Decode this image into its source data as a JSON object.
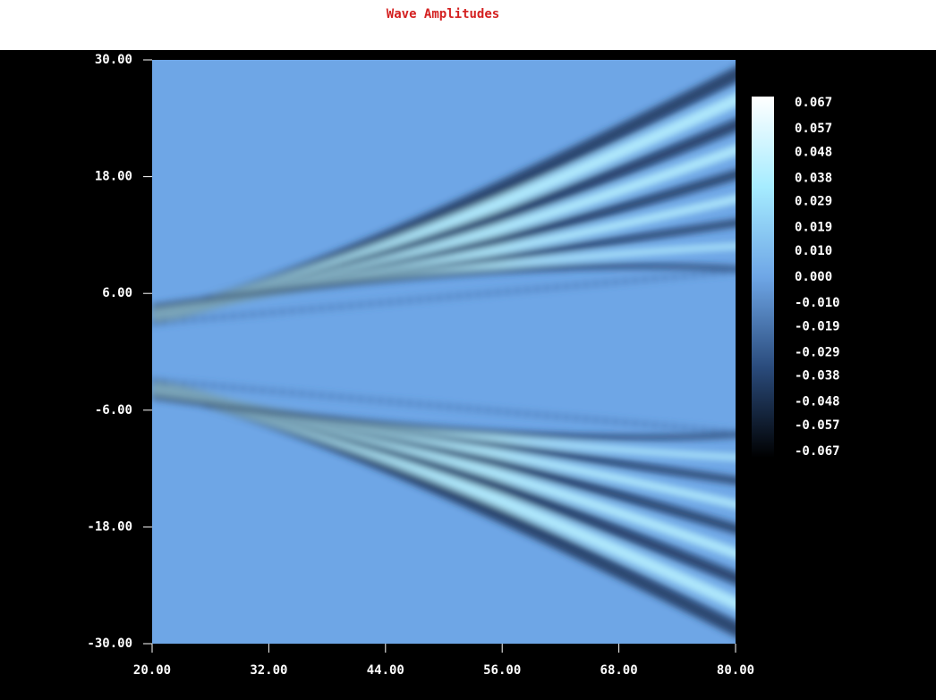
{
  "chart_data": {
    "type": "heatmap",
    "title": "Wave Amplitudes",
    "xlim": [
      20,
      80
    ],
    "ylim": [
      -30,
      30
    ],
    "xticks": [
      {
        "value": 20,
        "label": "20.00"
      },
      {
        "value": 32,
        "label": "32.00"
      },
      {
        "value": 44,
        "label": "44.00"
      },
      {
        "value": 56,
        "label": "56.00"
      },
      {
        "value": 68,
        "label": "68.00"
      },
      {
        "value": 80,
        "label": "80.00"
      }
    ],
    "yticks": [
      {
        "value": 30,
        "label": "30.00"
      },
      {
        "value": 18,
        "label": "18.00"
      },
      {
        "value": 6,
        "label": "6.00"
      },
      {
        "value": -6,
        "label": "-6.00"
      },
      {
        "value": -18,
        "label": "-18.00"
      },
      {
        "value": -30,
        "label": "-30.00"
      }
    ],
    "colorbar": {
      "clim": [
        -0.067,
        0.067
      ],
      "colors": [
        "#000000",
        "#2a4b7c",
        "#6ea6e6",
        "#a6ecff",
        "#ffffff"
      ],
      "ticks": [
        {
          "value": 0.067,
          "label": "0.067"
        },
        {
          "value": 0.057,
          "label": "0.057"
        },
        {
          "value": 0.048,
          "label": "0.048"
        },
        {
          "value": 0.038,
          "label": "0.038"
        },
        {
          "value": 0.029,
          "label": "0.029"
        },
        {
          "value": 0.019,
          "label": "0.019"
        },
        {
          "value": 0.01,
          "label": "0.010"
        },
        {
          "value": 0,
          "label": "0.000"
        },
        {
          "value": -0.01,
          "label": "-0.010"
        },
        {
          "value": -0.019,
          "label": "-0.019"
        },
        {
          "value": -0.029,
          "label": "-0.029"
        },
        {
          "value": -0.038,
          "label": "-0.038"
        },
        {
          "value": -0.048,
          "label": "-0.048"
        },
        {
          "value": -0.057,
          "label": "-0.057"
        },
        {
          "value": -0.067,
          "label": "-0.067"
        }
      ]
    }
  }
}
